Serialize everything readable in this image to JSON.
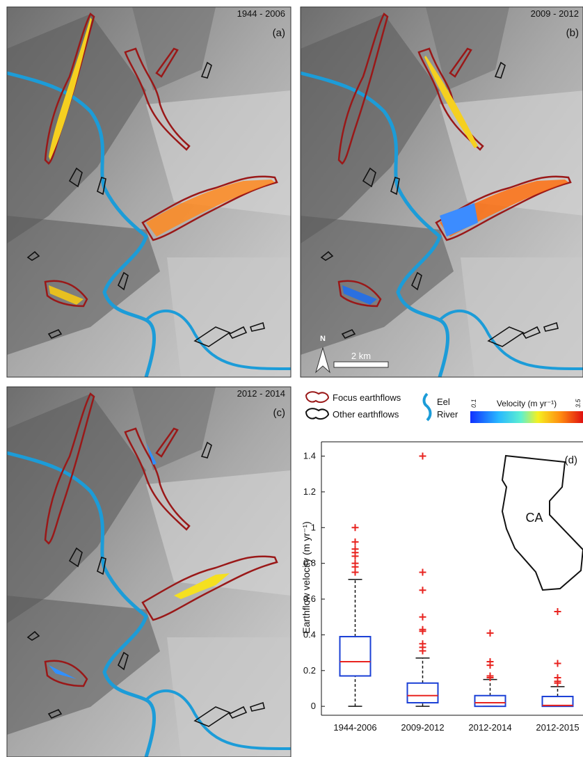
{
  "maps": [
    {
      "period": "1944 - 2006",
      "label": "(a)"
    },
    {
      "period": "2009 - 2012",
      "label": "(b)"
    },
    {
      "period": "2012 - 2014",
      "label": "(c)"
    }
  ],
  "north": "N",
  "scale_bar": "2 km",
  "legend": {
    "focus": "Focus earthflows",
    "other": "Other earthflows",
    "river": [
      "Eel",
      "River"
    ]
  },
  "colorbar": {
    "title": "Velocity (m yr⁻¹)",
    "min": 0.1,
    "max": 3.5
  },
  "chart_data": {
    "type": "box",
    "panel_label": "(d)",
    "inset_label": "CA",
    "ylabel": "Earthflow velocity (m yr⁻¹)",
    "categories": [
      "1944-2006",
      "2009-2012",
      "2012-2014",
      "2012-2015"
    ],
    "boxes": [
      {
        "whislo": 0,
        "q1": 0.17,
        "med": 0.25,
        "q3": 0.39,
        "whishi": 0.71,
        "fliers": [
          0.75,
          0.78,
          0.8,
          0.84,
          0.86,
          0.88,
          0.92,
          1.0
        ]
      },
      {
        "whislo": 0,
        "q1": 0.02,
        "med": 0.06,
        "q3": 0.13,
        "whishi": 0.27,
        "fliers": [
          0.31,
          0.33,
          0.35,
          0.42,
          0.43,
          0.5,
          0.65,
          0.75,
          1.4
        ]
      },
      {
        "whislo": 0,
        "q1": 0.0,
        "med": 0.02,
        "q3": 0.06,
        "whishi": 0.15,
        "fliers": [
          0.16,
          0.17,
          0.23,
          0.25,
          0.41
        ]
      },
      {
        "whislo": 0,
        "q1": 0.0,
        "med": 0.005,
        "q3": 0.055,
        "whishi": 0.11,
        "fliers": [
          0.13,
          0.14,
          0.16,
          0.24,
          0.53
        ]
      }
    ],
    "box_color": "#1a3fd6",
    "median_color": "#e8231f",
    "flier_color": "#e8231f",
    "ylim": [
      -0.05,
      1.48
    ],
    "yticks": [
      0,
      0.2,
      0.4,
      0.6,
      0.8,
      1,
      1.2,
      1.4
    ]
  }
}
